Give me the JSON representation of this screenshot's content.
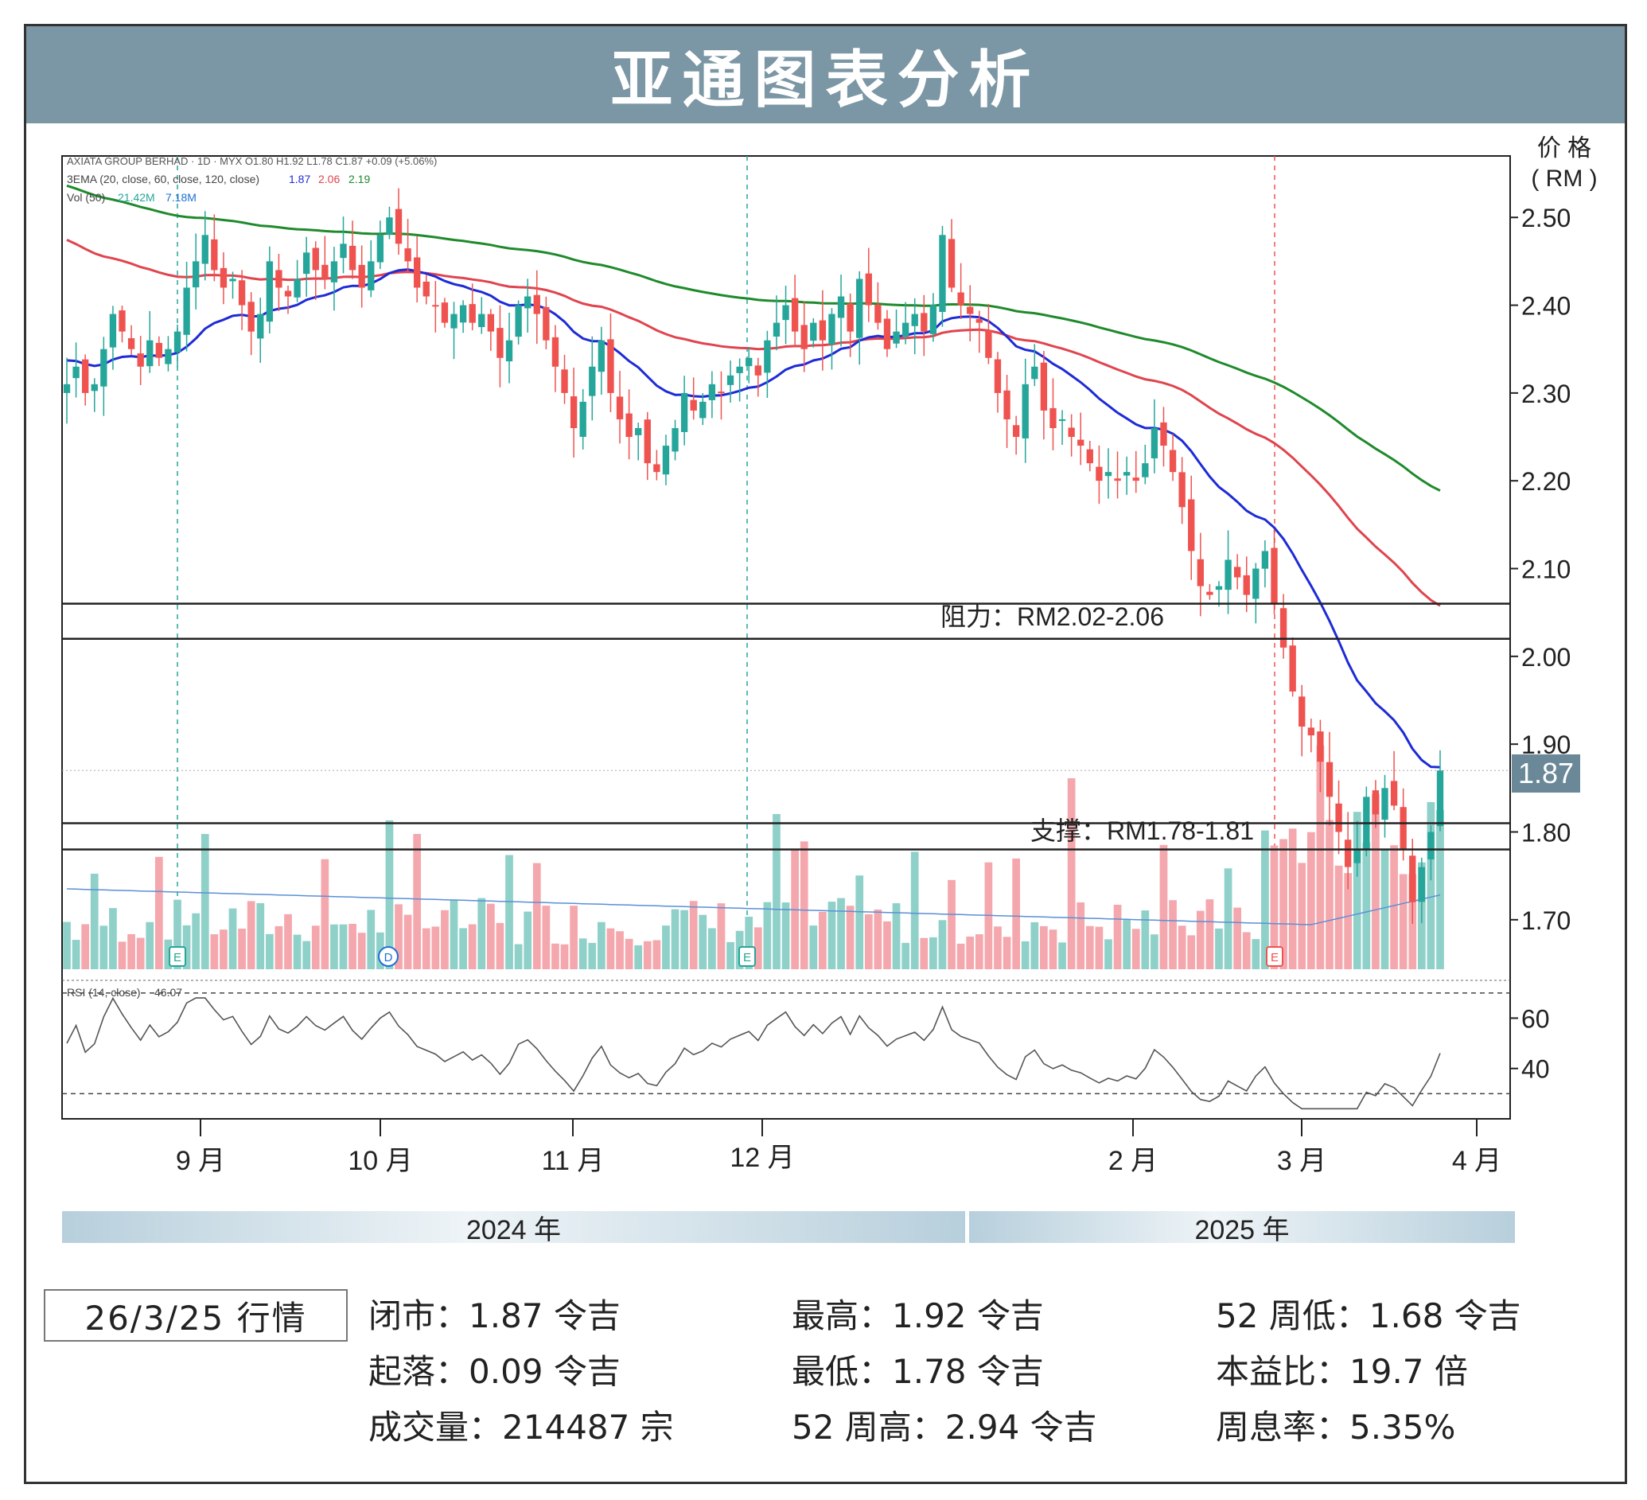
{
  "title": "亚通图表分析",
  "legend": {
    "line1": "AXIATA GROUP BERHAD · 1D · MYX  O1.80  H1.92  L1.78  C1.87  +0.09 (+5.06%)",
    "ema_label": "3EMA (20, close, 60, close, 120, close)",
    "ema_values": [
      "1.87",
      "2.06",
      "2.19"
    ],
    "vol_label": "Vol (50)",
    "vol_values": [
      "21.42M",
      "7.18M"
    ],
    "rsi_label": "RSI (14, close)",
    "rsi_value": "46.07"
  },
  "price_axis_label": [
    "价 格",
    "( RM )"
  ],
  "last_price_tag": "1.87",
  "annotations": {
    "resistance": "阻力：RM2.02-2.06",
    "support": "支撑：RM1.78-1.81"
  },
  "x_tick_labels": [
    "9 月",
    "10 月",
    "11 月",
    "12 月",
    "2 月",
    "3 月",
    "4 月"
  ],
  "event_markers": [
    "E",
    "D",
    "E",
    "E"
  ],
  "year_labels": [
    "2024 年",
    "2025 年"
  ],
  "colors": {
    "header": "#7b96a4",
    "up": "#26a69a",
    "down": "#ef5350",
    "ema20": "#1e2bd6",
    "ema60": "#e0444e",
    "ema120": "#1f8a2c",
    "price_tag": "#6a8898"
  },
  "chart_data": {
    "type": "candlestick",
    "title": "AXIATA GROUP BERHAD · 1D · MYX",
    "ylabel": "价 格 ( RM )",
    "ylim": [
      1.64,
      2.57
    ],
    "yticks": [
      1.7,
      1.8,
      1.9,
      2.0,
      2.1,
      2.2,
      2.3,
      2.4,
      2.5
    ],
    "x_range": [
      "2024-08",
      "2025-03-26"
    ],
    "last": {
      "open": 1.8,
      "high": 1.92,
      "low": 1.78,
      "close": 1.87,
      "change": 0.09,
      "change_pct": 5.06
    },
    "resistance_zone": [
      2.02,
      2.06
    ],
    "support_zone": [
      1.78,
      1.81
    ],
    "ema20_end": 1.87,
    "ema60_end": 2.06,
    "ema120_end": 2.19,
    "closes": [
      2.31,
      2.33,
      2.3,
      2.31,
      2.35,
      2.39,
      2.37,
      2.35,
      2.33,
      2.36,
      2.34,
      2.35,
      2.37,
      2.42,
      2.45,
      2.48,
      2.44,
      2.42,
      2.43,
      2.4,
      2.37,
      2.39,
      2.45,
      2.42,
      2.41,
      2.43,
      2.46,
      2.44,
      2.43,
      2.45,
      2.47,
      2.44,
      2.42,
      2.45,
      2.48,
      2.5,
      2.47,
      2.45,
      2.42,
      2.41,
      2.4,
      2.38,
      2.39,
      2.4,
      2.38,
      2.39,
      2.37,
      2.34,
      2.36,
      2.4,
      2.41,
      2.39,
      2.36,
      2.33,
      2.3,
      2.26,
      2.29,
      2.33,
      2.36,
      2.3,
      2.27,
      2.25,
      2.26,
      2.22,
      2.21,
      2.24,
      2.26,
      2.3,
      2.28,
      2.29,
      2.31,
      2.3,
      2.32,
      2.33,
      2.34,
      2.32,
      2.36,
      2.38,
      2.4,
      2.37,
      2.35,
      2.38,
      2.36,
      2.39,
      2.41,
      2.37,
      2.43,
      2.4,
      2.38,
      2.35,
      2.37,
      2.38,
      2.39,
      2.37,
      2.4,
      2.48,
      2.42,
      2.4,
      2.39,
      2.38,
      2.34,
      2.3,
      2.27,
      2.25,
      2.31,
      2.33,
      2.28,
      2.26,
      2.27,
      2.25,
      2.24,
      2.22,
      2.2,
      2.21,
      2.2,
      2.21,
      2.2,
      2.22,
      2.26,
      2.24,
      2.21,
      2.17,
      2.12,
      2.08,
      2.07,
      2.08,
      2.11,
      2.09,
      2.07,
      2.1,
      2.12,
      2.06,
      2.01,
      1.96,
      1.92,
      1.91,
      1.88,
      1.84,
      1.8,
      1.76,
      1.78,
      1.84,
      1.82,
      1.85,
      1.83,
      1.78,
      1.72,
      1.76,
      1.8,
      1.87
    ],
    "volume_scale_max": "21.42M",
    "volume_ma50": "7.18M",
    "rsi": {
      "label": "RSI (14, close)",
      "last": 46.07,
      "levels": [
        30,
        70
      ],
      "yticks": [
        40,
        60
      ]
    }
  },
  "stats_date": "26/3/25 行情",
  "stats": [
    [
      "闭市：1.87 令吉",
      "最高：1.92 令吉",
      "52 周低：1.68 令吉"
    ],
    [
      "起落：0.09 令吉",
      "最低：1.78 令吉",
      "本益比：19.7 倍"
    ],
    [
      "成交量：214487 宗",
      "52 周高：2.94 令吉",
      "周息率：5.35%"
    ]
  ]
}
